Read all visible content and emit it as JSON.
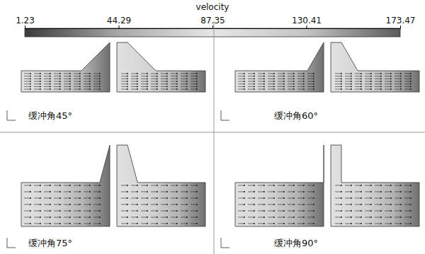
{
  "chart_data": {
    "type": "contour",
    "colorbar": {
      "title": "velocity",
      "range": [
        1.23,
        173.47
      ],
      "ticks": [
        1.23,
        44.29,
        87.35,
        130.41,
        173.47
      ]
    },
    "panels": [
      {
        "title": "缓冲角45°",
        "angle": 45
      },
      {
        "title": "缓冲角60°",
        "angle": 60
      },
      {
        "title": "缓冲角75°",
        "angle": 75
      },
      {
        "title": "缓冲角90°",
        "angle": 90
      }
    ]
  }
}
